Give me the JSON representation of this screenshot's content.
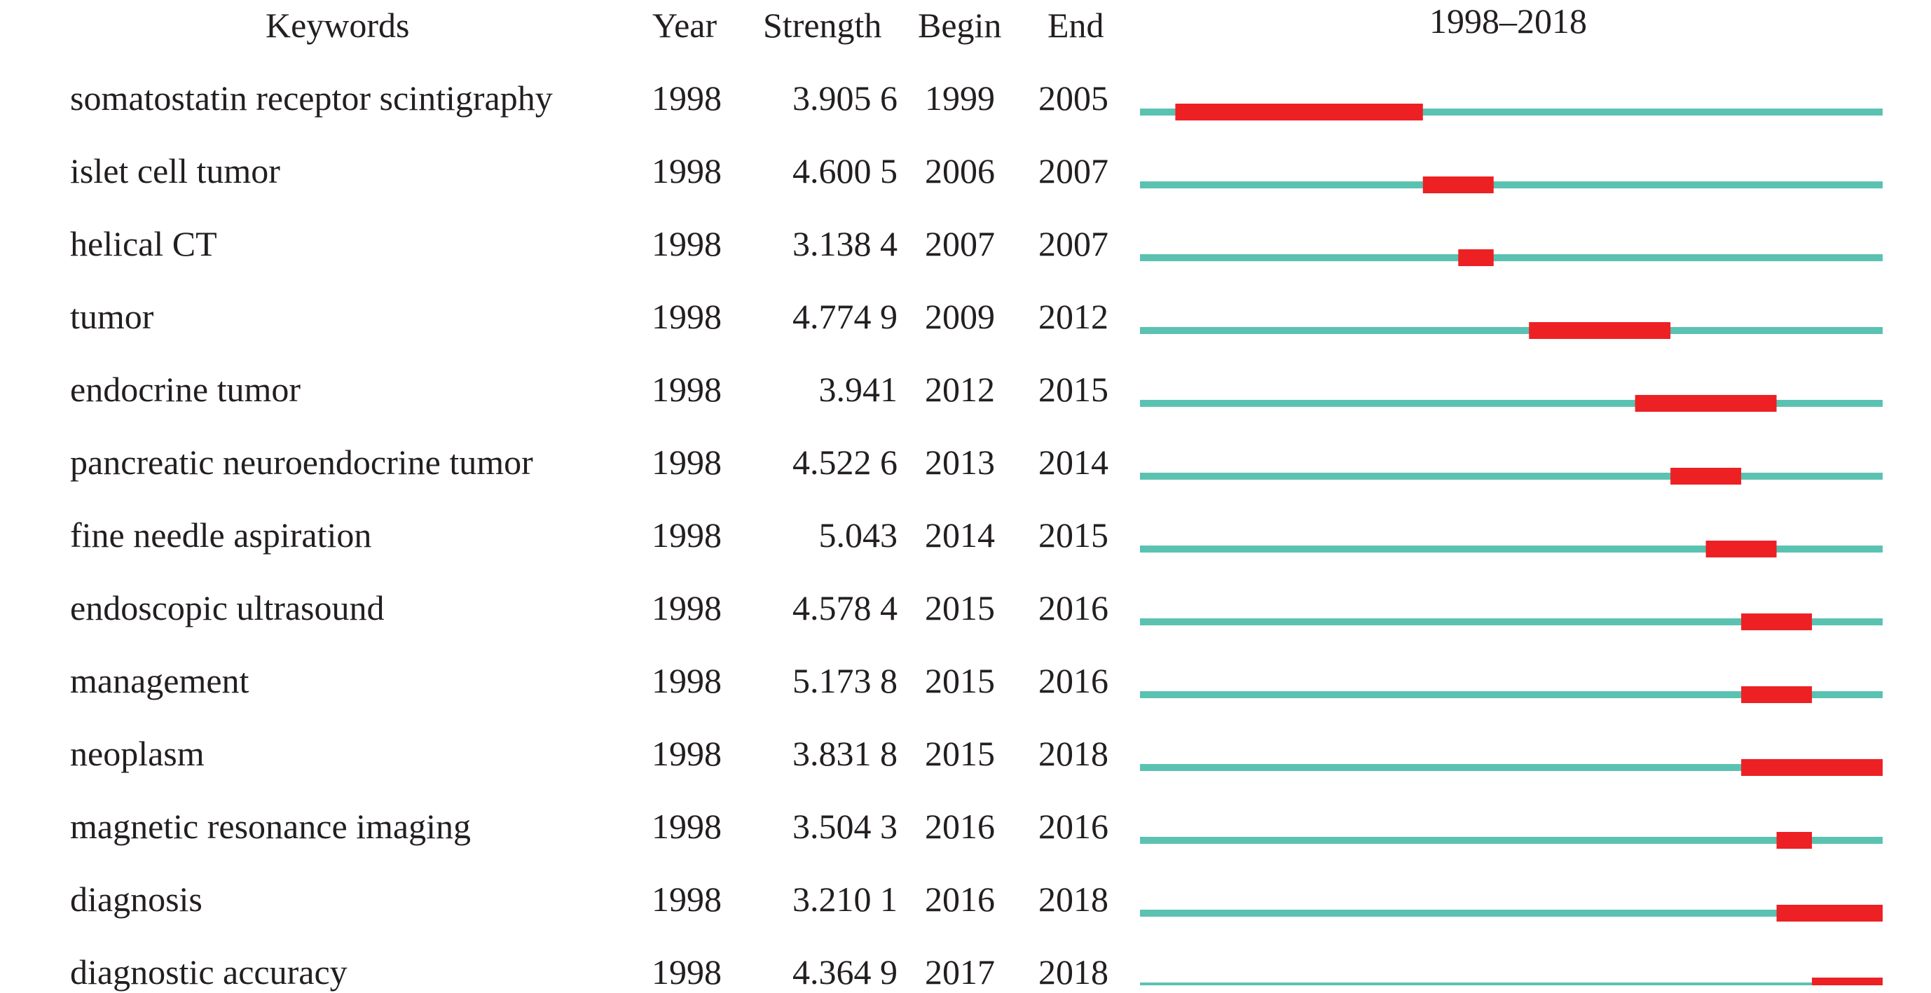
{
  "headers": {
    "keywords": "Keywords",
    "year": "Year",
    "strength": "Strength",
    "begin": "Begin",
    "end": "End",
    "range": "1998–2018"
  },
  "colors": {
    "baseline": "#5bc2b2",
    "burst": "#ed2024",
    "text": "#231f20"
  },
  "chart_data": {
    "type": "table",
    "title": "",
    "range_start": 1998,
    "range_end": 2018,
    "columns": [
      "Keywords",
      "Year",
      "Strength",
      "Begin",
      "End",
      "1998–2018"
    ],
    "rows": [
      {
        "keyword": "somatostatin receptor scintigraphy",
        "year": "1998",
        "strength": "3.905 6",
        "begin": "1999",
        "end": "2005"
      },
      {
        "keyword": "islet cell tumor",
        "year": "1998",
        "strength": "4.600 5",
        "begin": "2006",
        "end": "2007"
      },
      {
        "keyword": "helical CT",
        "year": "1998",
        "strength": "3.138 4",
        "begin": "2007",
        "end": "2007"
      },
      {
        "keyword": "tumor",
        "year": "1998",
        "strength": "4.774 9",
        "begin": "2009",
        "end": "2012"
      },
      {
        "keyword": "endocrine tumor",
        "year": "1998",
        "strength": "3.941",
        "begin": "2012",
        "end": "2015"
      },
      {
        "keyword": "pancreatic neuroendocrine tumor",
        "year": "1998",
        "strength": "4.522 6",
        "begin": "2013",
        "end": "2014"
      },
      {
        "keyword": "fine needle aspiration",
        "year": "1998",
        "strength": "5.043",
        "begin": "2014",
        "end": "2015"
      },
      {
        "keyword": "endoscopic ultrasound",
        "year": "1998",
        "strength": "4.578 4",
        "begin": "2015",
        "end": "2016"
      },
      {
        "keyword": "management",
        "year": "1998",
        "strength": "5.173 8",
        "begin": "2015",
        "end": "2016"
      },
      {
        "keyword": "neoplasm",
        "year": "1998",
        "strength": "3.831 8",
        "begin": "2015",
        "end": "2018"
      },
      {
        "keyword": "magnetic resonance imaging",
        "year": "1998",
        "strength": "3.504 3",
        "begin": "2016",
        "end": "2016"
      },
      {
        "keyword": "diagnosis",
        "year": "1998",
        "strength": "3.210 1",
        "begin": "2016",
        "end": "2018"
      },
      {
        "keyword": "diagnostic accuracy",
        "year": "1998",
        "strength": "4.364 9",
        "begin": "2017",
        "end": "2018"
      }
    ]
  }
}
